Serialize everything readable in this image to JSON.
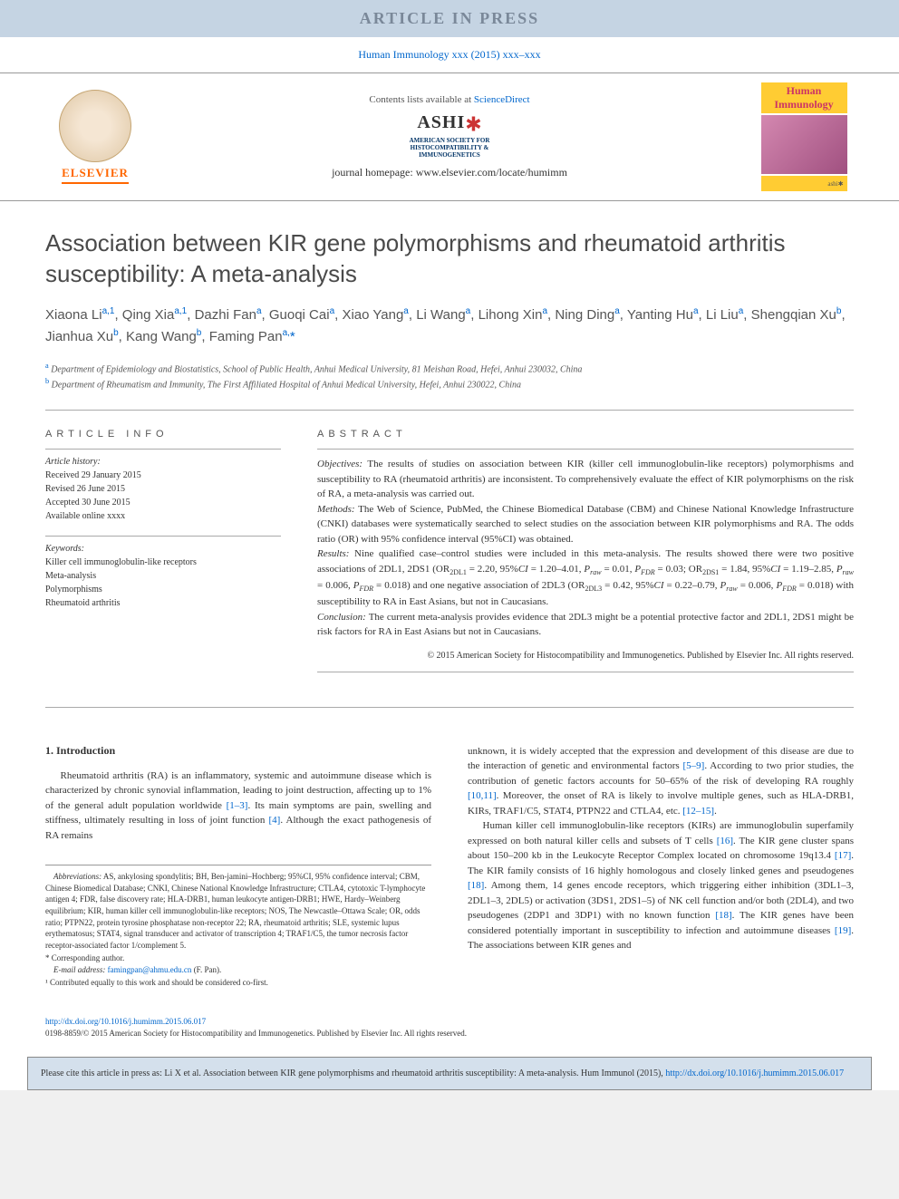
{
  "banner": {
    "text": "ARTICLE IN PRESS"
  },
  "journal_ref": "Human Immunology xxx (2015) xxx–xxx",
  "header": {
    "elsevier_label": "ELSEVIER",
    "contents_text": "Contents lists available at ",
    "contents_link": "ScienceDirect",
    "ashi": {
      "main": "ASHI",
      "sub": "AMERICAN SOCIETY FOR\nHISTOCOMPATIBILITY &\nIMMUNOGENETICS"
    },
    "homepage_label": "journal homepage: ",
    "homepage_url": "www.elsevier.com/locate/humimm",
    "cover_title": "Human\nImmunology"
  },
  "title": "Association between KIR gene polymorphisms and rheumatoid arthritis susceptibility: A meta-analysis",
  "authors_html": "Xiaona Li<sup>a,1</sup>, Qing Xia<sup>a,1</sup>, Dazhi Fan<sup>a</sup>, Guoqi Cai<sup>a</sup>, Xiao Yang<sup>a</sup>, Li Wang<sup>a</sup>, Lihong Xin<sup>a</sup>, Ning Ding<sup>a</sup>, Yanting Hu<sup>a</sup>, Li Liu<sup>a</sup>, Shengqian Xu<sup>b</sup>, Jianhua Xu<sup>b</sup>, Kang Wang<sup>b</sup>, Faming Pan<sup>a,</sup><span class='star'>*</span>",
  "affiliations": [
    {
      "sup": "a",
      "text": "Department of Epidemiology and Biostatistics, School of Public Health, Anhui Medical University, 81 Meishan Road, Hefei, Anhui 230032, China"
    },
    {
      "sup": "b",
      "text": "Department of Rheumatism and Immunity, The First Affiliated Hospital of Anhui Medical University, Hefei, Anhui 230022, China"
    }
  ],
  "article_info": {
    "head": "ARTICLE INFO",
    "history_label": "Article history:",
    "history": [
      "Received 29 January 2015",
      "Revised 26 June 2015",
      "Accepted 30 June 2015",
      "Available online xxxx"
    ],
    "keywords_label": "Keywords:",
    "keywords": [
      "Killer cell immunoglobulin-like receptors",
      "Meta-analysis",
      "Polymorphisms",
      "Rheumatoid arthritis"
    ]
  },
  "abstract": {
    "head": "ABSTRACT",
    "objectives_label": "Objectives:",
    "objectives": " The results of studies on association between KIR (killer cell immunoglobulin-like receptors) polymorphisms and susceptibility to RA (rheumatoid arthritis) are inconsistent. To comprehensively evaluate the effect of KIR polymorphisms on the risk of RA, a meta-analysis was carried out.",
    "methods_label": "Methods:",
    "methods": " The Web of Science, PubMed, the Chinese Biomedical Database (CBM) and Chinese National Knowledge Infrastructure (CNKI) databases were systematically searched to select studies on the association between KIR polymorphisms and RA. The odds ratio (OR) with 95% confidence interval (95%CI) was obtained.",
    "results_label": "Results:",
    "results_html": " Nine qualified case–control studies were included in this meta-analysis. The results showed there were two positive associations of 2DL1, 2DS1 (OR<sub>2DL1</sub> = 2.20, 95%<i>CI</i> = 1.20–4.01, <i>P<sub>raw</sub></i> = 0.01, <i>P<sub>FDR</sub></i> = 0.03; OR<sub>2DS1</sub> = 1.84, 95%<i>CI</i> = 1.19–2.85, <i>P<sub>raw</sub></i> = 0.006, <i>P<sub>FDR</sub></i> = 0.018) and one negative association of 2DL3 (OR<sub>2DL3</sub> = 0.42, 95%<i>CI</i> = 0.22–0.79, <i>P<sub>raw</sub></i> = 0.006, <i>P<sub>FDR</sub></i> = 0.018) with susceptibility to RA in East Asians, but not in Caucasians.",
    "conclusion_label": "Conclusion:",
    "conclusion": " The current meta-analysis provides evidence that 2DL3 might be a potential protective factor and 2DL1, 2DS1 might be risk factors for RA in East Asians but not in Caucasians.",
    "copyright": "© 2015 American Society for Histocompatibility and Immunogenetics. Published by Elsevier Inc. All rights reserved."
  },
  "body": {
    "intro_head": "1. Introduction",
    "intro_p1_html": "Rheumatoid arthritis (RA) is an inflammatory, systemic and autoimmune disease which is characterized by chronic synovial inflammation, leading to joint destruction, affecting up to 1% of the general adult population worldwide <span class='ref'>[1–3]</span>. Its main symptoms are pain, swelling and stiffness, ultimately resulting in loss of joint function <span class='ref'>[4]</span>. Although the exact pathogenesis of RA remains",
    "intro_p2_html": "unknown, it is widely accepted that the expression and development of this disease are due to the interaction of genetic and environmental factors <span class='ref'>[5–9]</span>. According to two prior studies, the contribution of genetic factors accounts for 50–65% of the risk of developing RA roughly <span class='ref'>[10,11]</span>. Moreover, the onset of RA is likely to involve multiple genes, such as HLA-DRB1, KIRs, TRAF1/C5, STAT4, PTPN22 and CTLA4, etc. <span class='ref'>[12–15]</span>.",
    "intro_p3_html": "Human killer cell immunoglobulin-like receptors (KIRs) are immunoglobulin superfamily expressed on both natural killer cells and subsets of T cells <span class='ref'>[16]</span>. The KIR gene cluster spans about 150–200 kb in the Leukocyte Receptor Complex located on chromosome 19q13.4 <span class='ref'>[17]</span>. The KIR family consists of 16 highly homologous and closely linked genes and pseudogenes <span class='ref'>[18]</span>. Among them, 14 genes encode receptors, which triggering either inhibition (3DL1–3, 2DL1–3, 2DL5) or activation (3DS1, 2DS1–5) of NK cell function and/or both (2DL4), and two pseudogenes (2DP1 and 3DP1) with no known function <span class='ref'>[18]</span>. The KIR genes have been considered potentially important in susceptibility to infection and autoimmune diseases <span class='ref'>[19]</span>. The associations between KIR genes and"
  },
  "footnotes": {
    "abbrev_label": "Abbreviations:",
    "abbrev": " AS, ankylosing spondylitis; BH, Ben-jamini–Hochberg; 95%CI, 95% confidence interval; CBM, Chinese Biomedical Database; CNKI, Chinese National Knowledge Infrastructure; CTLA4, cytotoxic T-lymphocyte antigen 4; FDR, false discovery rate; HLA-DRB1, human leukocyte antigen-DRB1; HWE, Hardy–Weinberg equilibrium; KIR, human killer cell immunoglobulin-like receptors; NOS, The Newcastle–Ottawa Scale; OR, odds ratio; PTPN22, protein tyrosine phosphatase non-receptor 22; RA, rheumatoid arthritis; SLE, systemic lupus erythematosus; STAT4, signal transducer and activator of transcription 4; TRAF1/C5, the tumor necrosis factor receptor-associated factor 1/complement 5.",
    "corr": "* Corresponding author.",
    "email_label": "E-mail address:",
    "email": "famingpan@ahmu.edu.cn",
    "email_who": " (F. Pan).",
    "cofirst": "¹ Contributed equally to this work and should be considered co-first."
  },
  "doi": {
    "url": "http://dx.doi.org/10.1016/j.humimm.2015.06.017",
    "issn": "0198-8859/© 2015 American Society for Histocompatibility and Immunogenetics. Published by Elsevier Inc. All rights reserved."
  },
  "citebox": {
    "text": "Please cite this article in press as: Li X et al. Association between KIR gene polymorphisms and rheumatoid arthritis susceptibility: A meta-analysis. Hum Immunol (2015), ",
    "link": "http://dx.doi.org/10.1016/j.humimm.2015.06.017"
  },
  "colors": {
    "banner_bg": "#c5d4e3",
    "banner_text": "#7a8899",
    "link": "#0066cc",
    "elsevier_orange": "#ff6600",
    "cover_yellow": "#ffcc33",
    "cover_pink": "#cc3366",
    "citebox_bg": "#d4e0ec"
  }
}
